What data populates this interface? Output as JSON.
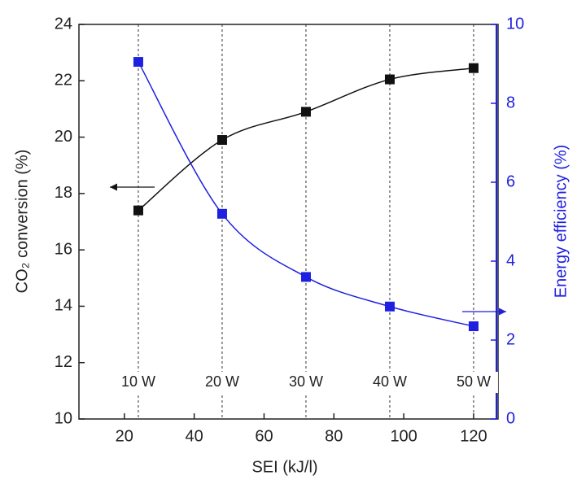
{
  "chart_data": {
    "type": "scatter",
    "xlabel": "SEI (kJ/l)",
    "ylabel": "CO₂ conversion (%)",
    "y2label": "Energy efficiency (%)",
    "x": [
      24,
      48,
      72,
      96,
      120
    ],
    "xlim": [
      7,
      127
    ],
    "xticks": [
      20,
      40,
      60,
      80,
      100,
      120
    ],
    "ylim": [
      10,
      24
    ],
    "yticks": [
      10,
      12,
      14,
      16,
      18,
      20,
      22,
      24
    ],
    "y2lim": [
      0,
      10
    ],
    "y2ticks": [
      0,
      2,
      4,
      6,
      8,
      10
    ],
    "series": [
      {
        "color": "#111111",
        "values": [
          17.4,
          19.9,
          20.9,
          22.05,
          22.45
        ]
      },
      {
        "color": "#1f1fe0",
        "axis": "y2",
        "values": [
          9.05,
          5.2,
          3.6,
          2.85,
          2.35
        ]
      }
    ],
    "annotations": [
      {
        "text": "10 W",
        "x": 24
      },
      {
        "text": "20 W",
        "x": 48
      },
      {
        "text": "30 W",
        "x": 72
      },
      {
        "text": "40 W",
        "x": 96
      },
      {
        "text": "50 W",
        "x": 120
      }
    ]
  }
}
